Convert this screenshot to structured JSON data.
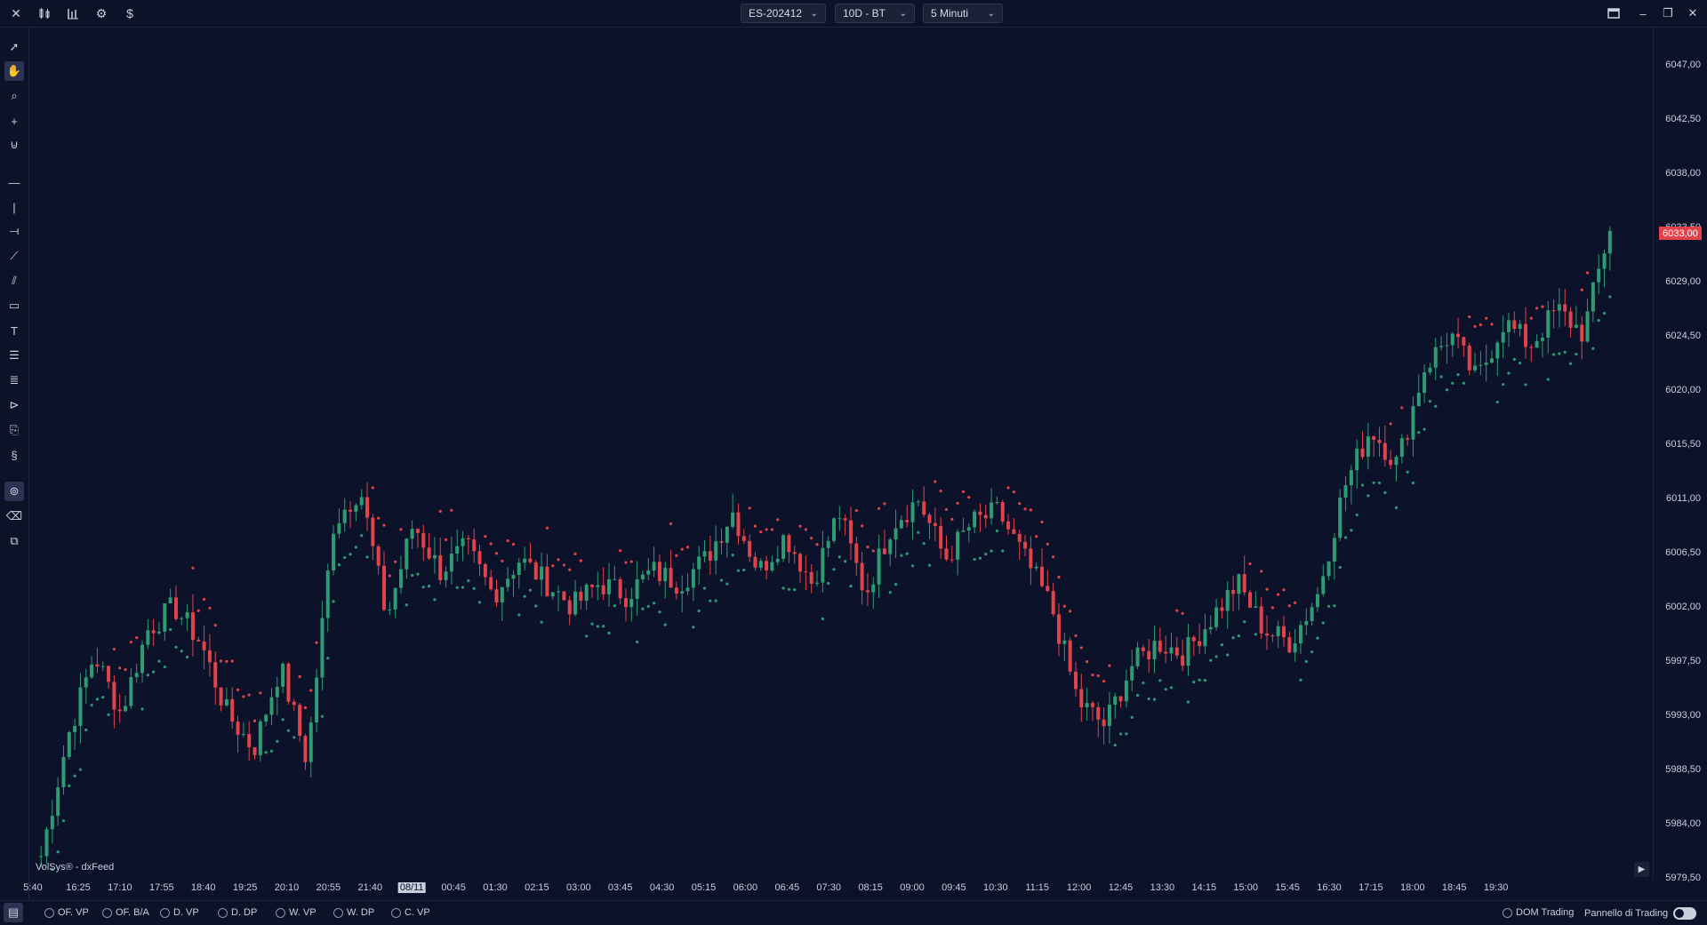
{
  "topbar": {
    "icons": [
      "close-icon",
      "candles-icon",
      "bars-icon",
      "gear-icon",
      "dollar-icon"
    ],
    "symbol": "ES-202412",
    "range": "10D - BT",
    "interval": "5 Minuti"
  },
  "chart": {
    "source": "VolSys® - dxFeed",
    "last_price": "6033,00",
    "y_labels": [
      "6047,00",
      "6042,50",
      "6038,00",
      "6033,50",
      "6029,00",
      "6024,50",
      "6020,00",
      "6015,50",
      "6011,00",
      "6006,50",
      "6002,00",
      "5997,50",
      "5993,00",
      "5988,50",
      "5984,00",
      "5979,50"
    ],
    "x_labels": [
      "5:40",
      "16:25",
      "17:10",
      "17:55",
      "18:40",
      "19:25",
      "20:10",
      "20:55",
      "21:40",
      "08/11",
      "00:45",
      "01:30",
      "02:15",
      "03:00",
      "03:45",
      "04:30",
      "05:15",
      "06:00",
      "06:45",
      "07:30",
      "08:15",
      "09:00",
      "09:45",
      "10:30",
      "11:15",
      "12:00",
      "12:45",
      "13:30",
      "14:15",
      "15:00",
      "15:45",
      "16:30",
      "17:15",
      "18:00",
      "18:45",
      "19:30"
    ],
    "highlighted_x_label": "08/11",
    "colors": {
      "up": "#2e9b74",
      "down": "#e2434b",
      "background": "#0b1229"
    }
  },
  "chart_data": {
    "type": "candlestick",
    "ylim": [
      5979.5,
      6049.0
    ],
    "series_close_key_points": [
      5980,
      5990,
      5997,
      5992,
      5999,
      6001,
      5998,
      5992,
      5989,
      5996,
      5988,
      6008,
      6011,
      6000,
      6008,
      6004,
      6006,
      6002,
      6005,
      6003,
      6001,
      6003,
      6002,
      6004,
      6003,
      6005,
      6009,
      6004,
      6007,
      6003,
      6009,
      6002,
      6008,
      6010,
      6005,
      6008,
      6009,
      6005,
      6001,
      5993,
      5991,
      5996,
      5998,
      5997,
      6000,
      6003,
      5999,
      5998,
      6002,
      6011,
      6016,
      6013,
      6021,
      6024,
      6020,
      6025,
      6023,
      6026,
      6024,
      6033
    ]
  },
  "bottom": {
    "options": [
      "OF. VP",
      "OF. B/A",
      "D. VP",
      "D. DP",
      "W. VP",
      "W. DP",
      "C. VP"
    ],
    "dom_trading": "DOM Trading",
    "panel": "Pannello di Trading"
  }
}
